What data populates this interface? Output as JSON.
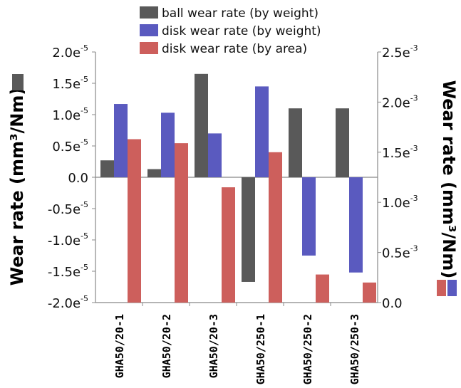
{
  "chart_data": {
    "type": "bar",
    "title": "",
    "categories": [
      "GHA50/20-1",
      "GHA50/20-2",
      "GHA50/20-3",
      "GHA50/250-1",
      "GHA50/250-2",
      "GHA50/250-3"
    ],
    "series": [
      {
        "name": "ball wear rate (by weight)",
        "axis": "left",
        "color": "#595959",
        "values": [
          2.7e-06,
          1.3e-06,
          1.65e-05,
          -1.67e-05,
          1.1e-05,
          1.1e-05
        ]
      },
      {
        "name": "disk wear rate (by weight)",
        "axis": "left",
        "color": "#5a5abf",
        "values": [
          1.17e-05,
          1.03e-05,
          7e-06,
          1.45e-05,
          -1.25e-05,
          -1.52e-05
        ]
      },
      {
        "name": "disk wear rate (by area)",
        "axis": "right",
        "color": "#cd5f5c",
        "values": [
          0.00163,
          0.00159,
          0.00115,
          0.0015,
          0.00028,
          0.0002
        ]
      }
    ],
    "left_axis": {
      "label": "Wear rate (mm³/Nm)",
      "ylim": [
        -2e-05,
        2e-05
      ],
      "ticks": [
        {
          "value": 2e-05,
          "mant": "2.0e",
          "exp": "-5"
        },
        {
          "value": 1.5e-05,
          "mant": "1.5e",
          "exp": "-5"
        },
        {
          "value": 1e-05,
          "mant": "1.0e",
          "exp": "-5"
        },
        {
          "value": 5e-06,
          "mant": "0.5e",
          "exp": "-5"
        },
        {
          "value": 0.0,
          "mant": "0.0",
          "exp": ""
        },
        {
          "value": -5e-06,
          "mant": "-0.5e",
          "exp": "-5"
        },
        {
          "value": -1e-05,
          "mant": "-1.0e",
          "exp": "-5"
        },
        {
          "value": -1.5e-05,
          "mant": "-1.5e",
          "exp": "-5"
        },
        {
          "value": -2e-05,
          "mant": "-2.0e",
          "exp": "-5"
        }
      ]
    },
    "right_axis": {
      "label": "Wear rate (mm³/Nm)",
      "ylim": [
        0,
        0.0025
      ],
      "ticks": [
        {
          "value": 0.0025,
          "mant": "2.5e",
          "exp": "-3"
        },
        {
          "value": 0.002,
          "mant": "2.0e",
          "exp": "-3"
        },
        {
          "value": 0.0015,
          "mant": "1.5e",
          "exp": "-3"
        },
        {
          "value": 0.001,
          "mant": "1.0e",
          "exp": "-3"
        },
        {
          "value": 0.0005,
          "mant": "0.5e",
          "exp": "-3"
        },
        {
          "value": 0.0,
          "mant": "0.0",
          "exp": ""
        }
      ]
    },
    "legend_position": "top"
  }
}
